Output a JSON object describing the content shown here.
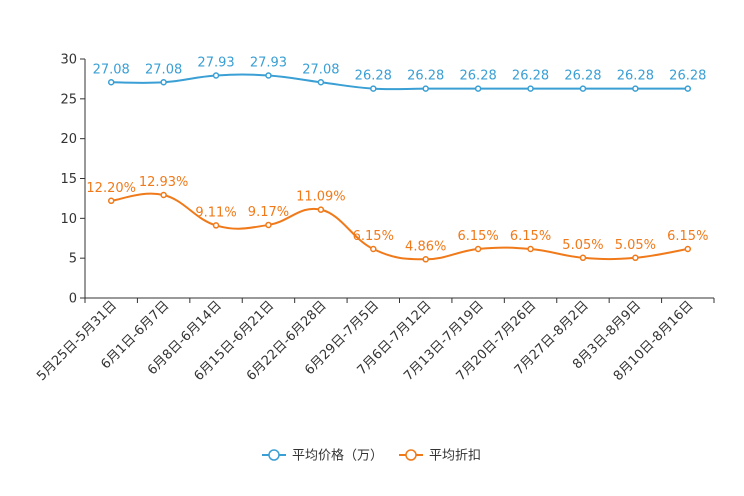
{
  "chart_data": {
    "type": "line",
    "title": "",
    "xlabel": "",
    "ylabel": "",
    "ylim": [
      0,
      30
    ],
    "yticks": [
      "0",
      "5",
      "10",
      "15",
      "20",
      "25",
      "30"
    ],
    "categories": [
      "5月25日-5月31日",
      "6月1日-6月7日",
      "6月8日-6月14日",
      "6月15日-6月21日",
      "6月22日-6月28日",
      "6月29日-7月5日",
      "7月6日-7月12日",
      "7月13日-7月19日",
      "7月20日-7月26日",
      "7月27日-8月2日",
      "8月3日-8月9日",
      "8月10日-8月16日"
    ],
    "series": [
      {
        "name": "平均价格（万）",
        "color": "#3a9fd4",
        "values": [
          27.08,
          27.08,
          27.93,
          27.93,
          27.08,
          26.28,
          26.28,
          26.28,
          26.28,
          26.28,
          26.28,
          26.28
        ],
        "labels": [
          "27.08",
          "27.08",
          "27.93",
          "27.93",
          "27.08",
          "26.28",
          "26.28",
          "26.28",
          "26.28",
          "26.28",
          "26.28",
          "26.28"
        ]
      },
      {
        "name": "平均折扣",
        "color": "#f07a1a",
        "values": [
          12.2,
          12.93,
          9.11,
          9.17,
          11.09,
          6.15,
          4.86,
          6.15,
          6.15,
          5.05,
          5.05,
          6.15
        ],
        "labels": [
          "12.20%",
          "12.93%",
          "9.11%",
          "9.17%",
          "11.09%",
          "6.15%",
          "4.86%",
          "6.15%",
          "6.15%",
          "5.05%",
          "5.05%",
          "6.15%"
        ]
      }
    ],
    "legend_position": "bottom-center",
    "grid": false
  }
}
